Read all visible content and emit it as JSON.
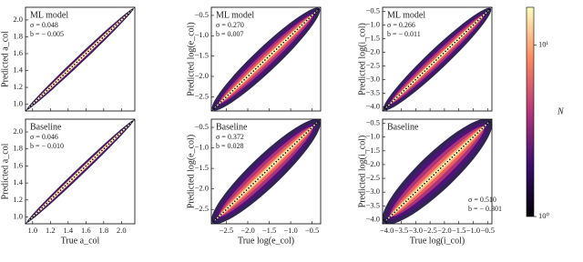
{
  "chart_data": [
    {
      "type": "hist2d",
      "title": "ML model",
      "stats": [
        "σ = 0.048",
        "b = − 0.005"
      ],
      "stats_loc": "upper left",
      "ylabel": "Predicted a_col",
      "xlim": [
        0.92,
        2.15
      ],
      "ylim": [
        0.92,
        2.15
      ],
      "xticks": [
        1.0,
        1.2,
        1.4,
        1.6,
        1.8,
        2.0
      ],
      "yticks": [
        {
          "value": 1.0,
          "label": "1.0"
        },
        {
          "value": 1.2,
          "label": "1.2"
        },
        {
          "value": 1.4,
          "label": "1.4"
        },
        {
          "value": 1.6,
          "label": "1.6"
        },
        {
          "value": 1.8,
          "label": "1.8"
        },
        {
          "value": 2.0,
          "label": "2.0"
        }
      ]
    },
    {
      "type": "hist2d",
      "title": "ML model",
      "stats": [
        "σ = 0.270",
        "b = 0.007"
      ],
      "stats_loc": "upper left",
      "ylabel": "Predicted log(e_col)",
      "xlim": [
        -2.85,
        -0.3
      ],
      "ylim": [
        -2.85,
        -0.3
      ],
      "xticks": [
        -2.5,
        -2.0,
        -1.5,
        -1.0,
        -0.5
      ],
      "yticks": [
        {
          "value": -2.5,
          "label": "−2.5"
        },
        {
          "value": -2.0,
          "label": "−2.0"
        },
        {
          "value": -1.5,
          "label": "−1.5"
        },
        {
          "value": -1.0,
          "label": "−1.0"
        },
        {
          "value": -0.5,
          "label": "−0.5"
        }
      ]
    },
    {
      "type": "hist2d",
      "title": "ML model",
      "stats": [
        "σ = 0.266",
        "b = − 0.011"
      ],
      "stats_loc": "upper left",
      "ylabel": "Predicted log(i_col)",
      "xlim": [
        -4.15,
        -0.35
      ],
      "ylim": [
        -4.15,
        -0.35
      ],
      "xticks": [
        -4.0,
        -3.5,
        -3.0,
        -2.5,
        -2.0,
        -1.5,
        -1.0,
        -0.5
      ],
      "yticks": [
        {
          "value": -4.0,
          "label": "−4.0"
        },
        {
          "value": -3.5,
          "label": "−3.5"
        },
        {
          "value": -3.0,
          "label": "−3.0"
        },
        {
          "value": -2.5,
          "label": "−2.5"
        },
        {
          "value": -2.0,
          "label": "−2.0"
        },
        {
          "value": -1.5,
          "label": "−1.5"
        },
        {
          "value": -1.0,
          "label": "−1.0"
        },
        {
          "value": -0.5,
          "label": "−0.5"
        }
      ]
    },
    {
      "type": "hist2d",
      "title": "Baseline",
      "stats": [
        "σ = 0.046",
        "b = − 0.010"
      ],
      "stats_loc": "upper left",
      "ylabel": "Predicted a_col",
      "xlabel": "True a_col",
      "xlim": [
        0.92,
        2.15
      ],
      "ylim": [
        0.92,
        2.15
      ],
      "xticks": [
        {
          "value": 1.0,
          "label": "1.0"
        },
        {
          "value": 1.2,
          "label": "1.2"
        },
        {
          "value": 1.4,
          "label": "1.4"
        },
        {
          "value": 1.6,
          "label": "1.6"
        },
        {
          "value": 1.8,
          "label": "1.8"
        },
        {
          "value": 2.0,
          "label": "2.0"
        }
      ],
      "yticks": [
        {
          "value": 1.0,
          "label": "1.0"
        },
        {
          "value": 1.2,
          "label": "1.2"
        },
        {
          "value": 1.4,
          "label": "1.4"
        },
        {
          "value": 1.6,
          "label": "1.6"
        },
        {
          "value": 1.8,
          "label": "1.8"
        },
        {
          "value": 2.0,
          "label": "2.0"
        }
      ]
    },
    {
      "type": "hist2d",
      "title": "Baseline",
      "stats": [
        "σ = 0.372",
        "b = 0.028"
      ],
      "stats_loc": "upper left",
      "ylabel": "Predicted log(e_col)",
      "xlabel": "True log(e_col)",
      "xlim": [
        -2.85,
        -0.3
      ],
      "ylim": [
        -2.85,
        -0.3
      ],
      "xticks": [
        {
          "value": -2.5,
          "label": "−2.5"
        },
        {
          "value": -2.0,
          "label": "−2.0"
        },
        {
          "value": -1.5,
          "label": "−1.5"
        },
        {
          "value": -1.0,
          "label": "−1.0"
        },
        {
          "value": -0.5,
          "label": "−0.5"
        }
      ],
      "yticks": [
        {
          "value": -2.5,
          "label": "−2.5"
        },
        {
          "value": -2.0,
          "label": "−2.0"
        },
        {
          "value": -1.5,
          "label": "−1.5"
        },
        {
          "value": -1.0,
          "label": "−1.0"
        },
        {
          "value": -0.5,
          "label": "−0.5"
        }
      ]
    },
    {
      "type": "hist2d",
      "title": "Baseline",
      "stats": [
        "σ = 0.510",
        "b = − 0.301"
      ],
      "stats_loc": "lower right",
      "ylabel": "Predicted log(i_col)",
      "xlabel": "True log(i_col)",
      "xlim": [
        -4.15,
        -0.35
      ],
      "ylim": [
        -4.15,
        -0.35
      ],
      "xticks": [
        {
          "value": -4.0,
          "label": "−4.0"
        },
        {
          "value": -3.5,
          "label": "−3.5"
        },
        {
          "value": -3.0,
          "label": "−3.0"
        },
        {
          "value": -2.5,
          "label": "−2.5"
        },
        {
          "value": -2.0,
          "label": "−2.0"
        },
        {
          "value": -1.5,
          "label": "−1.5"
        },
        {
          "value": -1.0,
          "label": "−1.0"
        },
        {
          "value": -0.5,
          "label": "−0.5"
        }
      ],
      "yticks": [
        {
          "value": -4.0,
          "label": "−4.0"
        },
        {
          "value": -3.5,
          "label": "−3.5"
        },
        {
          "value": -3.0,
          "label": "−3.0"
        },
        {
          "value": -2.5,
          "label": "−2.5"
        },
        {
          "value": -2.0,
          "label": "−2.0"
        },
        {
          "value": -1.5,
          "label": "−1.5"
        },
        {
          "value": -1.0,
          "label": "−1.0"
        },
        {
          "value": -0.5,
          "label": "−0.5"
        }
      ]
    },
    {
      "type": "colorbar",
      "label": "N",
      "scale": "log",
      "clim": [
        1,
        16.6
      ],
      "ticks": [
        {
          "value": 1,
          "label": "10⁰"
        },
        {
          "value": 10,
          "label": "10¹"
        }
      ]
    }
  ]
}
